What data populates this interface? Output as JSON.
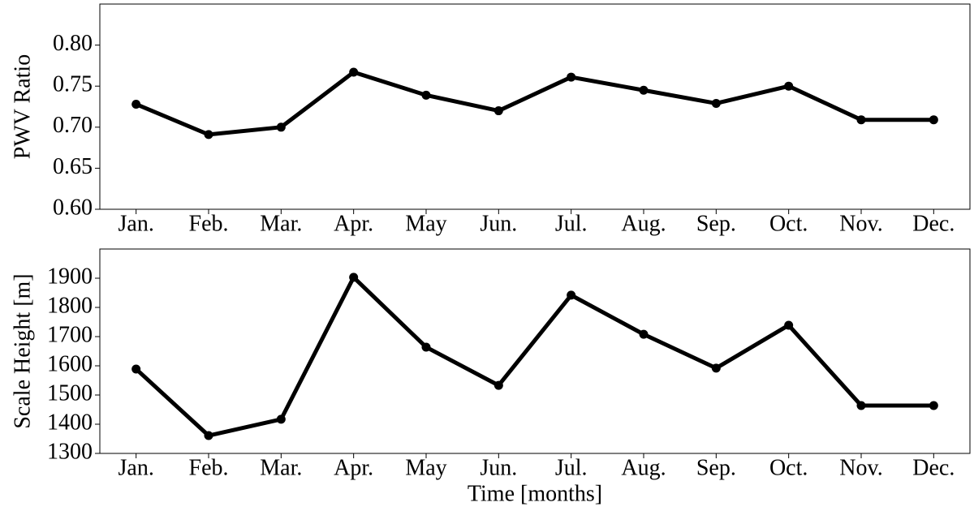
{
  "chart_data": [
    {
      "type": "line",
      "ylabel": "PWV Ratio",
      "categories": [
        "Jan.",
        "Feb.",
        "Mar.",
        "Apr.",
        "May",
        "Jun.",
        "Jul.",
        "Aug.",
        "Sep.",
        "Oct.",
        "Nov.",
        "Dec."
      ],
      "values": [
        0.728,
        0.691,
        0.7,
        0.767,
        0.739,
        0.72,
        0.761,
        0.745,
        0.729,
        0.75,
        0.709,
        0.709
      ],
      "color": "#000000",
      "ylim": [
        0.6,
        0.85
      ],
      "yticks": [
        {
          "value": 0.6,
          "label": "0.60"
        },
        {
          "value": 0.65,
          "label": "0.65"
        },
        {
          "value": 0.7,
          "label": "0.70"
        },
        {
          "value": 0.75,
          "label": "0.75"
        },
        {
          "value": 0.8,
          "label": "0.80"
        }
      ]
    },
    {
      "type": "line",
      "ylabel": "Scale Height [m]",
      "xlabel": "Time [months]",
      "categories": [
        "Jan.",
        "Feb.",
        "Mar.",
        "Apr.",
        "May",
        "Jun.",
        "Jul.",
        "Aug.",
        "Sep.",
        "Oct.",
        "Nov.",
        "Dec."
      ],
      "values": [
        1589,
        1361,
        1417,
        1903,
        1664,
        1533,
        1842,
        1708,
        1592,
        1739,
        1464,
        1464
      ],
      "color": "#000000",
      "ylim": [
        1300,
        2000
      ],
      "yticks": [
        1300,
        1400,
        1500,
        1600,
        1700,
        1800,
        1900
      ]
    }
  ]
}
